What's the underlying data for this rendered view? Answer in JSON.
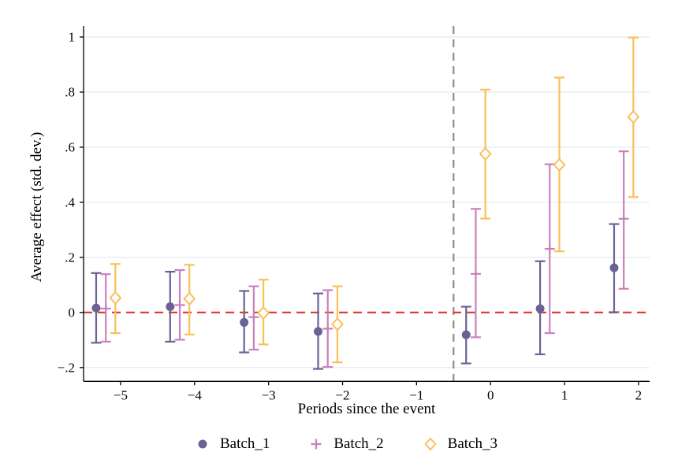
{
  "chart_data": {
    "type": "scatter",
    "title": "",
    "xlabel": "Periods since the event",
    "ylabel": "Average effect (std. dev.)",
    "xlim": [
      -5.5,
      2.15
    ],
    "ylim": [
      -0.25,
      1.04
    ],
    "x_ticks": [
      -5,
      -4,
      -3,
      -2,
      -1,
      0,
      1,
      2
    ],
    "x_tick_labels": [
      "−5",
      "−4",
      "−3",
      "−2",
      "−1",
      "0",
      "1",
      "2"
    ],
    "y_ticks": [
      -0.2,
      0,
      0.2,
      0.4,
      0.6,
      0.8,
      1
    ],
    "y_tick_labels": [
      "−.2",
      "0",
      ".2",
      ".4",
      ".6",
      ".8",
      "1"
    ],
    "grid": "horizontal",
    "gridline_color": "#e6eef0",
    "background": "#ffffff",
    "legend_position": "bottom-center",
    "reference_lines": {
      "zero_line": {
        "y": 0,
        "style": "dashed",
        "color": "#e0402e"
      },
      "event_line": {
        "x": -0.5,
        "style": "dashed",
        "color": "#8c8c8c"
      }
    },
    "series": [
      {
        "name": "Batch_1",
        "marker": "circle",
        "color": "#6a6295",
        "x_offset": -0.33,
        "points": [
          {
            "x": -5,
            "y": 0.016,
            "lo": -0.11,
            "hi": 0.143
          },
          {
            "x": -4,
            "y": 0.021,
            "lo": -0.106,
            "hi": 0.148
          },
          {
            "x": -3,
            "y": -0.036,
            "lo": -0.145,
            "hi": 0.078
          },
          {
            "x": -2,
            "y": -0.069,
            "lo": -0.205,
            "hi": 0.069
          },
          {
            "x": 0,
            "y": -0.081,
            "lo": -0.185,
            "hi": 0.021
          },
          {
            "x": 1,
            "y": 0.014,
            "lo": -0.152,
            "hi": 0.186
          },
          {
            "x": 2,
            "y": 0.162,
            "lo": 0.001,
            "hi": 0.321
          }
        ]
      },
      {
        "name": "Batch_2",
        "marker": "plus",
        "color": "#c981bd",
        "x_offset": -0.2,
        "points": [
          {
            "x": -5,
            "y": 0.014,
            "lo": -0.106,
            "hi": 0.139
          },
          {
            "x": -4,
            "y": 0.027,
            "lo": -0.099,
            "hi": 0.154
          },
          {
            "x": -3,
            "y": -0.017,
            "lo": -0.135,
            "hi": 0.095
          },
          {
            "x": -2,
            "y": -0.059,
            "lo": -0.198,
            "hi": 0.081
          },
          {
            "x": 0,
            "y": 0.14,
            "lo": -0.09,
            "hi": 0.376
          },
          {
            "x": 1,
            "y": 0.231,
            "lo": -0.075,
            "hi": 0.538
          },
          {
            "x": 2,
            "y": 0.34,
            "lo": 0.086,
            "hi": 0.585
          }
        ]
      },
      {
        "name": "Batch_3",
        "marker": "diamond",
        "color": "#fbbf5a",
        "x_offset": -0.07,
        "points": [
          {
            "x": -5,
            "y": 0.053,
            "lo": -0.075,
            "hi": 0.176
          },
          {
            "x": -4,
            "y": 0.05,
            "lo": -0.08,
            "hi": 0.173
          },
          {
            "x": -3,
            "y": -0.002,
            "lo": -0.116,
            "hi": 0.119
          },
          {
            "x": -2,
            "y": -0.043,
            "lo": -0.181,
            "hi": 0.095
          },
          {
            "x": 0,
            "y": 0.576,
            "lo": 0.341,
            "hi": 0.809
          },
          {
            "x": 1,
            "y": 0.536,
            "lo": 0.222,
            "hi": 0.853
          },
          {
            "x": 2,
            "y": 0.71,
            "lo": 0.419,
            "hi": 0.998
          }
        ]
      }
    ]
  }
}
